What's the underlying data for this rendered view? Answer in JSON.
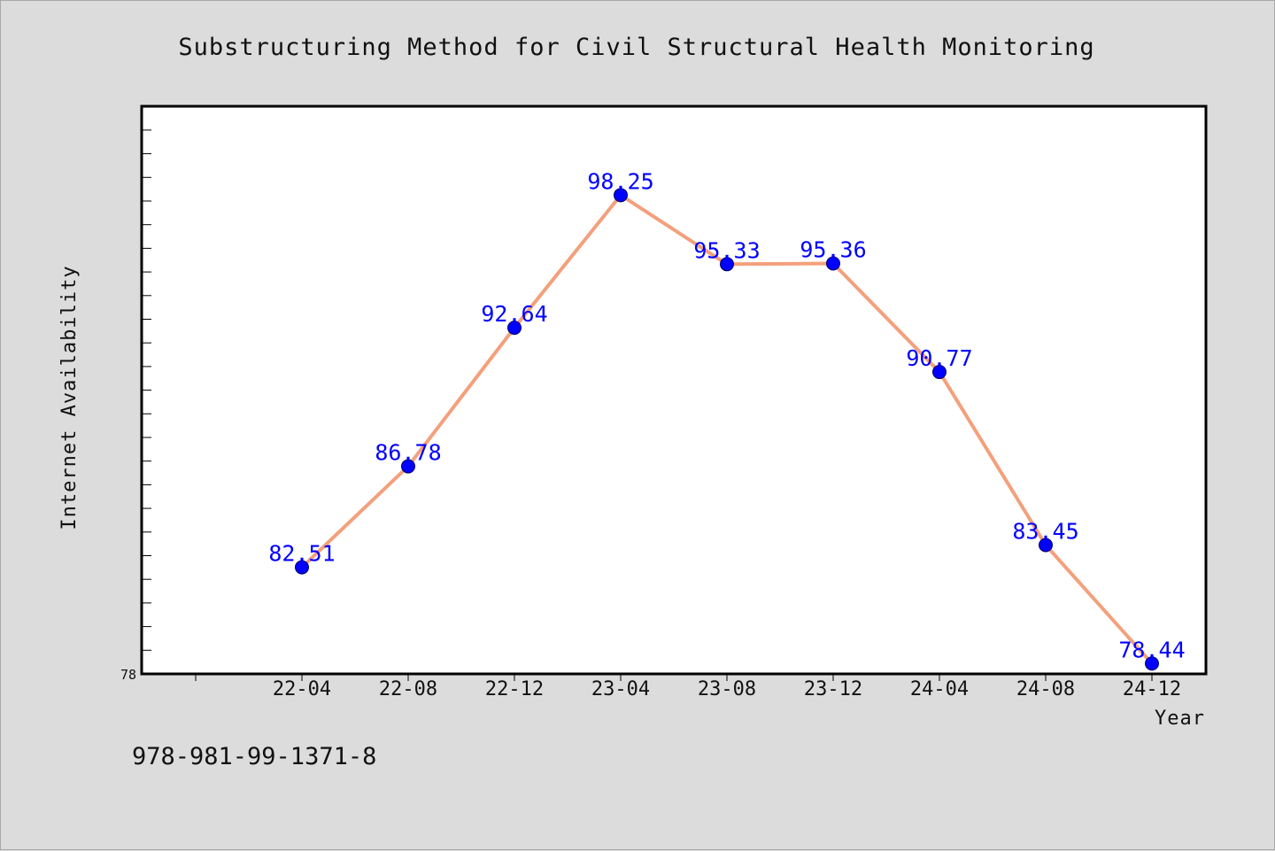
{
  "chart_data": {
    "type": "line",
    "title": "Substructuring Method for Civil Structural Health Monitoring",
    "xlabel": "Year",
    "ylabel": "Internet Availability",
    "categories": [
      "22-04",
      "22-08",
      "22-12",
      "23-04",
      "23-08",
      "23-12",
      "24-04",
      "24-08",
      "24-12"
    ],
    "values": [
      82.51,
      86.78,
      92.64,
      98.25,
      95.33,
      95.36,
      90.77,
      83.45,
      78.44
    ],
    "data_labels": [
      "82.51",
      "86.78",
      "92.64",
      "98.25",
      "95.33",
      "95.36",
      "90.77",
      "83.45",
      "78.44"
    ],
    "ylim": [
      78,
      102
    ],
    "ytick_labels": [
      "78"
    ],
    "grid": false,
    "legend": "none",
    "line_color": "#f4a07c",
    "marker_color": "#0000ff",
    "label_color": "#0000ff"
  },
  "footer": {
    "isbn": "978-981-99-1371-8"
  }
}
